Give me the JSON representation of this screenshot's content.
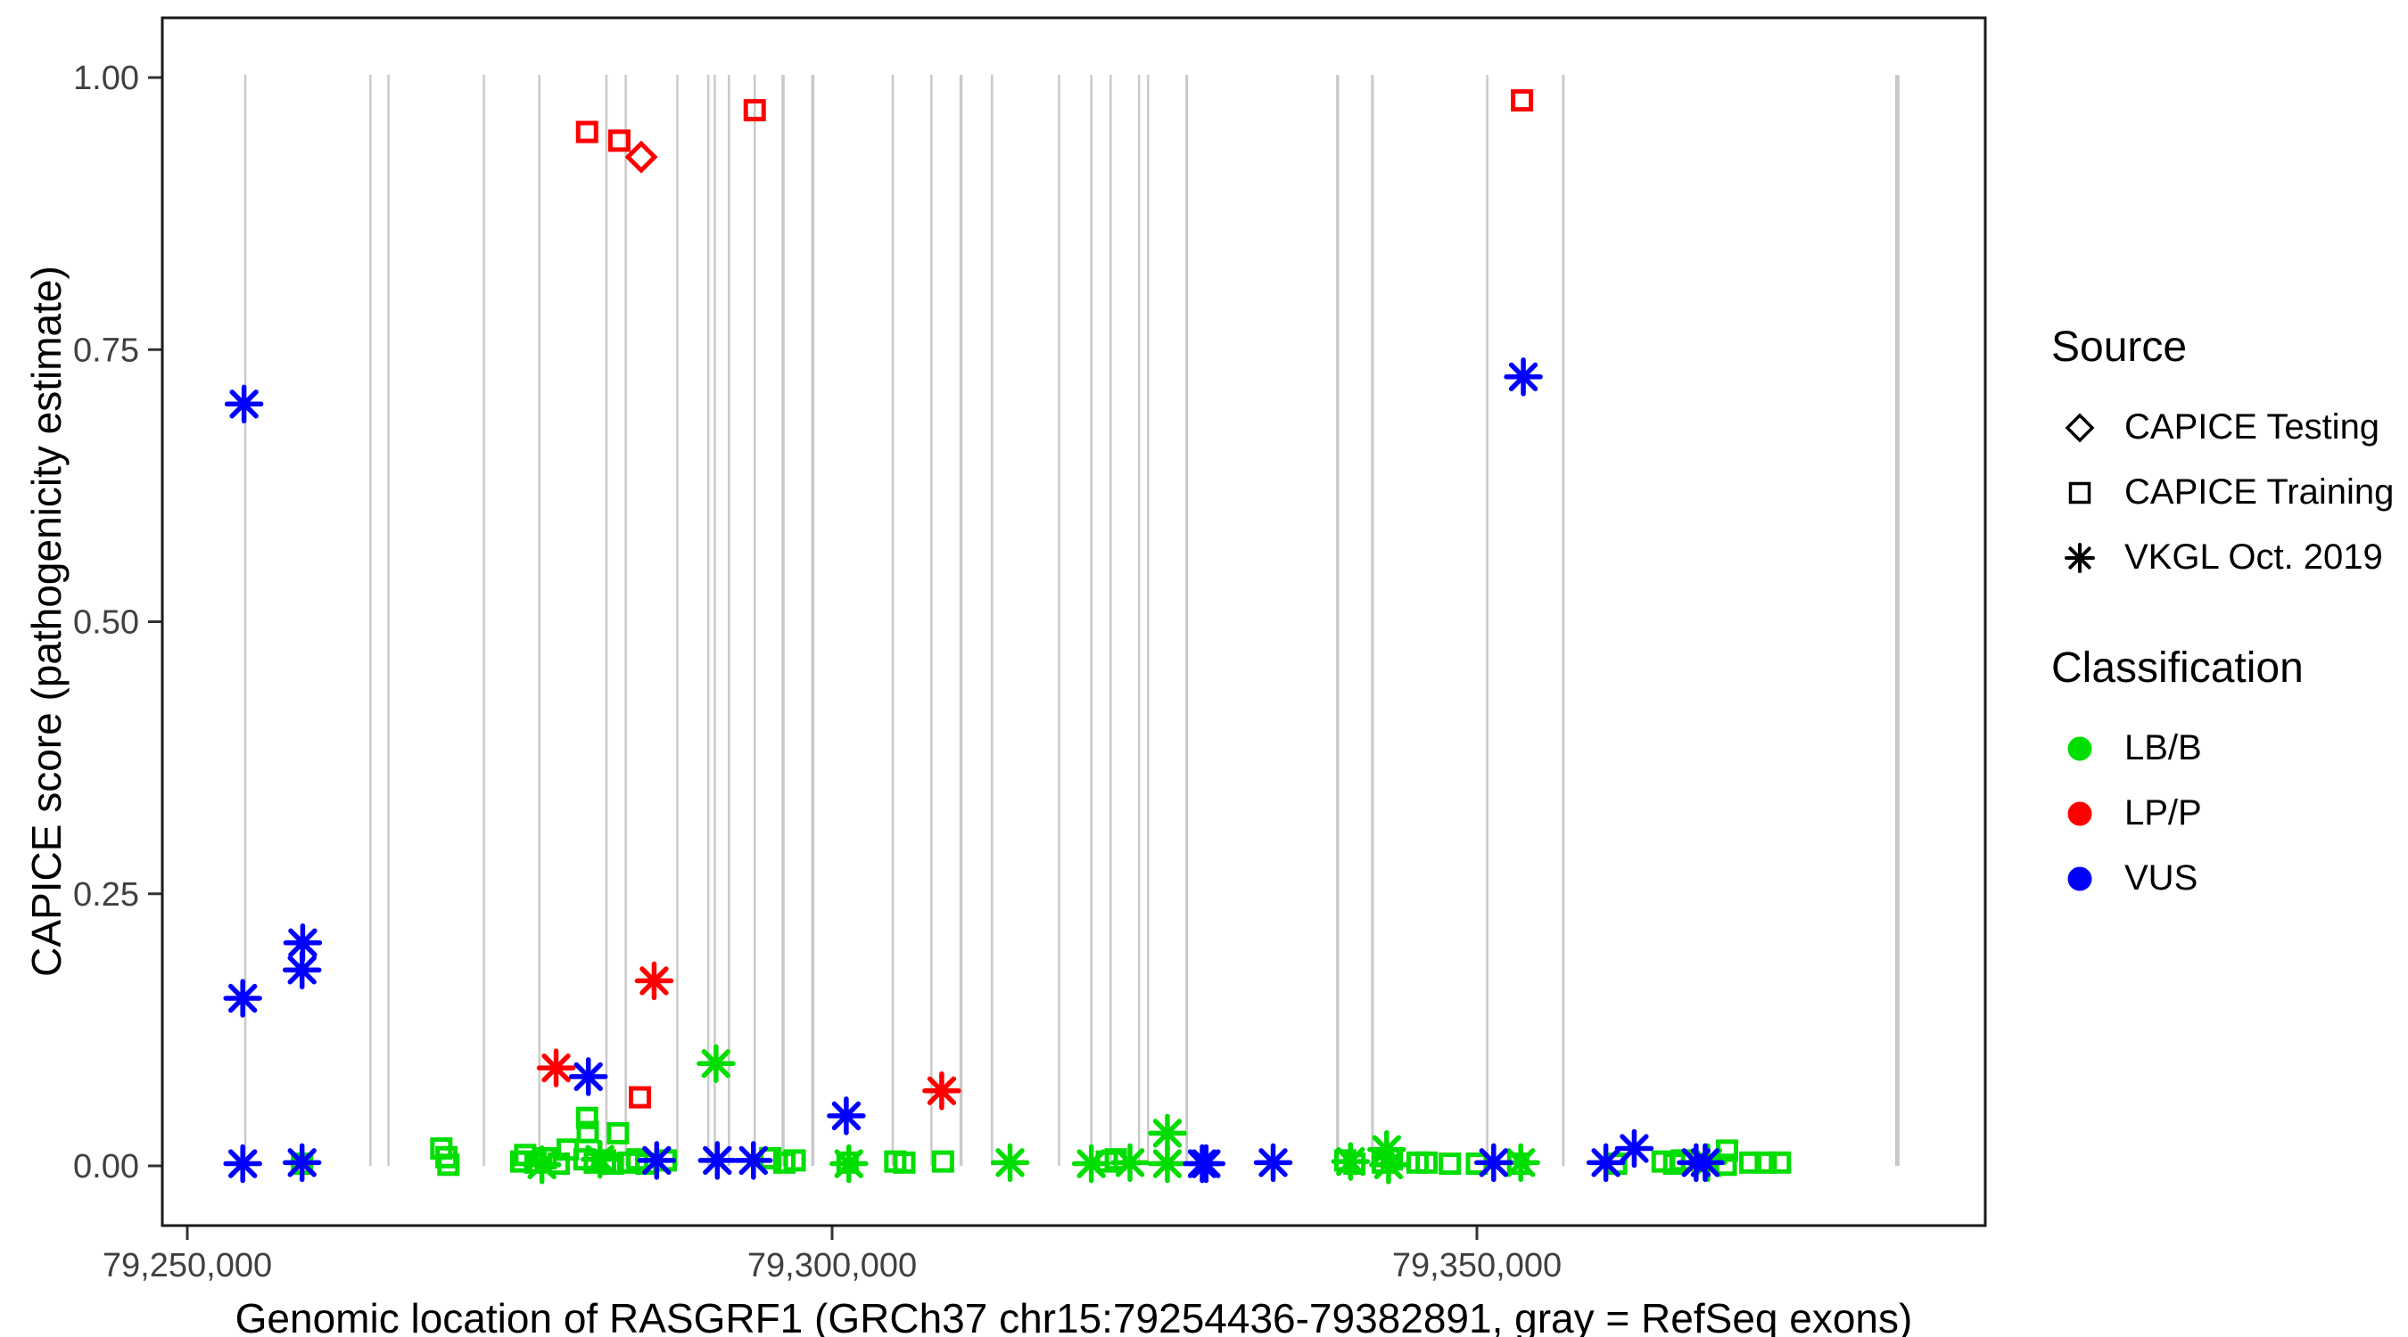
{
  "figure": {
    "colors": {
      "lbb_green": "#00DD00",
      "lpp_red": "#FF0000",
      "vus_blue": "#0000FF",
      "exon_gray": "#C9C9C9",
      "tick_text": "#404040",
      "panel_border": "#1a1a1a"
    },
    "legend": {
      "source": {
        "title": "Source",
        "items": [
          {
            "label": "CAPICE Testing",
            "marker": "diamond"
          },
          {
            "label": "CAPICE Training",
            "marker": "square"
          },
          {
            "label": "VKGL Oct. 2019",
            "marker": "asterisk"
          }
        ]
      },
      "classification": {
        "title": "Classification",
        "items": [
          {
            "label": "LB/B",
            "color": "#00DD00"
          },
          {
            "label": "LP/P",
            "color": "#FF0000"
          },
          {
            "label": "VUS",
            "color": "#0000FF"
          }
        ]
      }
    }
  },
  "chart_data": {
    "type": "scatter",
    "title": "",
    "xlabel": "Genomic location of RASGRF1 (GRCh37 chr15:79254436-79382891, gray = RefSeq exons)",
    "ylabel": "CAPICE score (pathogenicity estimate)",
    "xlim": [
      79248000,
      79389500
    ],
    "ylim": [
      -0.055,
      1.055
    ],
    "grid": false,
    "legend_position": "right",
    "x_ticks": [
      {
        "v": 79250000,
        "label": "79,250,000"
      },
      {
        "v": 79300000,
        "label": "79,300,000"
      },
      {
        "v": 79350000,
        "label": "79,350,000"
      }
    ],
    "y_ticks": [
      {
        "v": 0.0,
        "label": "0.00"
      },
      {
        "v": 0.25,
        "label": "0.25"
      },
      {
        "v": 0.5,
        "label": "0.50"
      },
      {
        "v": 0.75,
        "label": "0.75"
      },
      {
        "v": 1.0,
        "label": "1.00"
      }
    ],
    "exons_note": "gray vertical segments = RefSeq exons, drawn from score 0 to 1",
    "exons": [
      {
        "bp": 79254500,
        "w": 2.5
      },
      {
        "bp": 79264200,
        "w": 2.5
      },
      {
        "bp": 79265600,
        "w": 2.5
      },
      {
        "bp": 79273000,
        "w": 2.5
      },
      {
        "bp": 79277300,
        "w": 2.5
      },
      {
        "bp": 79282500,
        "w": 2.5
      },
      {
        "bp": 79284000,
        "w": 2.5
      },
      {
        "bp": 79288000,
        "w": 2.5
      },
      {
        "bp": 79290400,
        "w": 2.5
      },
      {
        "bp": 79290900,
        "w": 2.5
      },
      {
        "bp": 79292000,
        "w": 2.5
      },
      {
        "bp": 79294000,
        "w": 2.5
      },
      {
        "bp": 79296200,
        "w": 3.5
      },
      {
        "bp": 79298500,
        "w": 3.5
      },
      {
        "bp": 79304700,
        "w": 2.5
      },
      {
        "bp": 79307700,
        "w": 2.5
      },
      {
        "bp": 79310000,
        "w": 3.5
      },
      {
        "bp": 79312400,
        "w": 2.5
      },
      {
        "bp": 79317600,
        "w": 2.5
      },
      {
        "bp": 79320100,
        "w": 2.5
      },
      {
        "bp": 79321600,
        "w": 2.5
      },
      {
        "bp": 79323800,
        "w": 2.5
      },
      {
        "bp": 79324500,
        "w": 2.5
      },
      {
        "bp": 79327500,
        "w": 3
      },
      {
        "bp": 79339200,
        "w": 3.5
      },
      {
        "bp": 79341900,
        "w": 3
      },
      {
        "bp": 79350800,
        "w": 2.5
      },
      {
        "bp": 79356700,
        "w": 3
      },
      {
        "bp": 79382600,
        "w": 5
      }
    ],
    "series": [
      {
        "name": "CAPICE Training / LB/B",
        "source": "CAPICE Training",
        "classification": "LB/B",
        "marker": "square",
        "color": "#00DD00",
        "points": [
          [
            79258900,
            0.002
          ],
          [
            79269700,
            0.016
          ],
          [
            79270100,
            0.008
          ],
          [
            79270250,
            0.001
          ],
          [
            79275900,
            0.004
          ],
          [
            79276200,
            0.01
          ],
          [
            79277000,
            0.003
          ],
          [
            79277800,
            0.007
          ],
          [
            79278800,
            0.002
          ],
          [
            79279500,
            0.015
          ],
          [
            79280800,
            0.006
          ],
          [
            79281000,
            0.044
          ],
          [
            79281050,
            0.031
          ],
          [
            79281600,
            0.003
          ],
          [
            79282400,
            0.005
          ],
          [
            79283000,
            0.002
          ],
          [
            79283400,
            0.03
          ],
          [
            79284200,
            0.003
          ],
          [
            79284900,
            0.006
          ],
          [
            79285600,
            0.002
          ],
          [
            79287100,
            0.005
          ],
          [
            79295200,
            0.007
          ],
          [
            79296300,
            0.003
          ],
          [
            79297100,
            0.005
          ],
          [
            79301200,
            0.003
          ],
          [
            79304900,
            0.004
          ],
          [
            79305600,
            0.003
          ],
          [
            79308600,
            0.004
          ],
          [
            79321300,
            0.004
          ],
          [
            79322000,
            0.006
          ],
          [
            79339800,
            0.005
          ],
          [
            79340500,
            0.002
          ],
          [
            79342700,
            0.003
          ],
          [
            79343400,
            0.006
          ],
          [
            79345400,
            0.003
          ],
          [
            79346100,
            0.003
          ],
          [
            79347900,
            0.002
          ],
          [
            79350000,
            0.002
          ],
          [
            79353200,
            0.002
          ],
          [
            79360800,
            0.002
          ],
          [
            79364400,
            0.004
          ],
          [
            79365300,
            0.002
          ],
          [
            79365900,
            0.005
          ],
          [
            79369300,
            0.001
          ],
          [
            79369400,
            0.014
          ],
          [
            79371200,
            0.003
          ],
          [
            79372400,
            0.003
          ],
          [
            79373500,
            0.003
          ]
        ]
      },
      {
        "name": "VKGL Oct. 2019 / LB/B",
        "source": "VKGL Oct. 2019",
        "classification": "LB/B",
        "marker": "asterisk",
        "color": "#00DD00",
        "points": [
          [
            79277500,
            0.001
          ],
          [
            79282000,
            0.006
          ],
          [
            79291000,
            0.094
          ],
          [
            79301300,
            0.002
          ],
          [
            79313800,
            0.003
          ],
          [
            79320100,
            0.002
          ],
          [
            79323100,
            0.003
          ],
          [
            79326000,
            0.03
          ],
          [
            79326000,
            0.002
          ],
          [
            79340200,
            0.004
          ],
          [
            79343000,
            0.015
          ],
          [
            79343150,
            0.001
          ],
          [
            79353400,
            0.003
          ],
          [
            79367900,
            0.003
          ]
        ]
      },
      {
        "name": "VKGL Oct. 2019 / VUS",
        "source": "VKGL Oct. 2019",
        "classification": "VUS",
        "marker": "asterisk",
        "color": "#0000FF",
        "points": [
          [
            79254300,
            0.002
          ],
          [
            79254300,
            0.154
          ],
          [
            79254400,
            0.7
          ],
          [
            79258900,
            0.003
          ],
          [
            79258900,
            0.18
          ],
          [
            79258950,
            0.205
          ],
          [
            79281100,
            0.082
          ],
          [
            79286400,
            0.005
          ],
          [
            79291100,
            0.005
          ],
          [
            79293900,
            0.005
          ],
          [
            79301100,
            0.046
          ],
          [
            79328700,
            0.002
          ],
          [
            79329000,
            0.002
          ],
          [
            79334200,
            0.003
          ],
          [
            79351300,
            0.003
          ],
          [
            79353600,
            0.725
          ],
          [
            79360000,
            0.003
          ],
          [
            79362200,
            0.016
          ],
          [
            79367000,
            0.003
          ],
          [
            79367700,
            0.003
          ]
        ]
      },
      {
        "name": "VKGL Oct. 2019 / LP/P",
        "source": "VKGL Oct. 2019",
        "classification": "LP/P",
        "marker": "asterisk",
        "color": "#FF0000",
        "points": [
          [
            79278600,
            0.09
          ],
          [
            79286200,
            0.17
          ],
          [
            79308500,
            0.069
          ]
        ]
      },
      {
        "name": "CAPICE Training / LP/P",
        "source": "CAPICE Training",
        "classification": "LP/P",
        "marker": "square",
        "color": "#FF0000",
        "points": [
          [
            79281000,
            0.95
          ],
          [
            79283500,
            0.942
          ],
          [
            79285100,
            0.063
          ],
          [
            79294000,
            0.97
          ],
          [
            79353500,
            0.979
          ]
        ]
      },
      {
        "name": "CAPICE Testing / LP/P",
        "source": "CAPICE Testing",
        "classification": "LP/P",
        "marker": "diamond",
        "color": "#FF0000",
        "points": [
          [
            79285200,
            0.927
          ]
        ]
      }
    ]
  }
}
